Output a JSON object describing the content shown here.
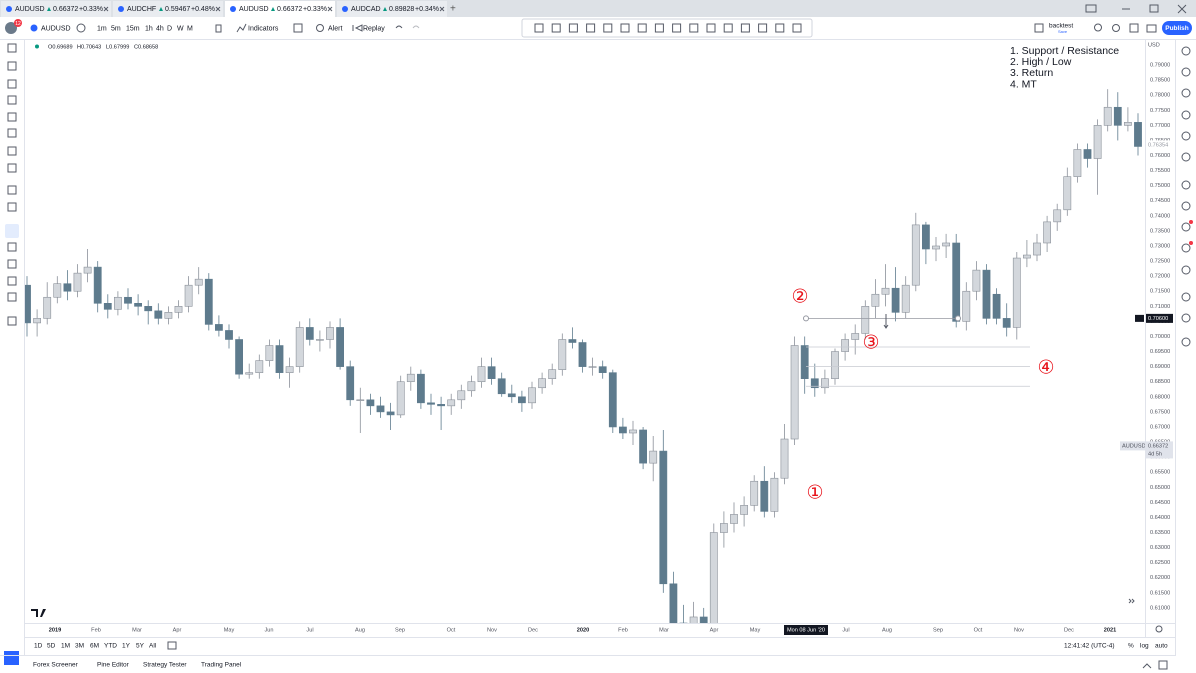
{
  "tabs": [
    {
      "symbol": "AUDUSD",
      "price": "0.66372",
      "change": "+0.33%"
    },
    {
      "symbol": "AUDCHF",
      "price": "0.59467",
      "change": "+0.48%"
    },
    {
      "symbol": "AUDUSD",
      "price": "0.66372",
      "change": "+0.33%"
    },
    {
      "symbol": "AUDCAD",
      "price": "0.89828",
      "change": "+0.34%"
    }
  ],
  "toolbar": {
    "notifications": "12",
    "symbol": "AUDUSD",
    "intervals": [
      "1m",
      "5m",
      "15m",
      "1h",
      "4h",
      "D",
      "W",
      "M"
    ],
    "indicators": "Indicators",
    "alert": "Alert",
    "replay": "Replay",
    "layout_name": "backtest",
    "save": "Save",
    "publish": "Publish"
  },
  "chart_data": {
    "type": "candlestick",
    "ohlc_legend": [
      "O0.69689",
      "H0.70643",
      "L0.67999",
      "C0.68658"
    ],
    "currency": "USD",
    "up_color": "#d3d7dc",
    "down_color": "#5e7b8d",
    "ylim": [
      0.605,
      0.7983
    ],
    "yticks": [
      {
        "value": 0.61,
        "label": "0.61000"
      },
      {
        "value": 0.615,
        "label": "0.61500"
      },
      {
        "value": 0.62,
        "label": "0.62000"
      },
      {
        "value": 0.625,
        "label": "0.62500"
      },
      {
        "value": 0.63,
        "label": "0.63000"
      },
      {
        "value": 0.635,
        "label": "0.63500"
      },
      {
        "value": 0.64,
        "label": "0.64000"
      },
      {
        "value": 0.645,
        "label": "0.64500"
      },
      {
        "value": 0.65,
        "label": "0.65000"
      },
      {
        "value": 0.655,
        "label": "0.65500"
      },
      {
        "value": 0.66,
        "label": "0.66000"
      },
      {
        "value": 0.665,
        "label": "0.66500"
      },
      {
        "value": 0.67,
        "label": "0.67000"
      },
      {
        "value": 0.675,
        "label": "0.67500"
      },
      {
        "value": 0.68,
        "label": "0.68000"
      },
      {
        "value": 0.685,
        "label": "0.68500"
      },
      {
        "value": 0.69,
        "label": "0.69000"
      },
      {
        "value": 0.695,
        "label": "0.69500"
      },
      {
        "value": 0.7,
        "label": "0.70000"
      },
      {
        "value": 0.705,
        "label": "0.70500"
      },
      {
        "value": 0.71,
        "label": "0.71000"
      },
      {
        "value": 0.715,
        "label": "0.71500"
      },
      {
        "value": 0.72,
        "label": "0.72000"
      },
      {
        "value": 0.725,
        "label": "0.72500"
      },
      {
        "value": 0.73,
        "label": "0.73000"
      },
      {
        "value": 0.735,
        "label": "0.73500"
      },
      {
        "value": 0.74,
        "label": "0.74000"
      },
      {
        "value": 0.745,
        "label": "0.74500"
      },
      {
        "value": 0.75,
        "label": "0.75000"
      },
      {
        "value": 0.755,
        "label": "0.75500"
      },
      {
        "value": 0.76,
        "label": "0.76000"
      },
      {
        "value": 0.765,
        "label": "0.76500"
      },
      {
        "value": 0.77,
        "label": "0.77000"
      },
      {
        "value": 0.775,
        "label": "0.77500"
      },
      {
        "value": 0.78,
        "label": "0.78000"
      },
      {
        "value": 0.785,
        "label": "0.78500"
      },
      {
        "value": 0.79,
        "label": "0.79000"
      }
    ],
    "grid": false,
    "xlabels": [
      "2019",
      "Feb",
      "Mar",
      "Apr",
      "May",
      "Jun",
      "Jul",
      "Aug",
      "Sep",
      "Oct",
      "Nov",
      "Dec",
      "2020",
      "Feb",
      "Mar",
      "Apr",
      "May",
      "Mon 08 Jun '20",
      "Jul",
      "Aug",
      "Sep",
      "Oct",
      "Nov",
      "Dec",
      "2021"
    ],
    "candles": [
      [
        0.717,
        0.72,
        0.7,
        0.7045
      ],
      [
        0.7045,
        0.709,
        0.7,
        0.706
      ],
      [
        0.706,
        0.718,
        0.704,
        0.713
      ],
      [
        0.713,
        0.72,
        0.711,
        0.7175
      ],
      [
        0.7175,
        0.722,
        0.712,
        0.715
      ],
      [
        0.715,
        0.724,
        0.713,
        0.721
      ],
      [
        0.721,
        0.729,
        0.718,
        0.723
      ],
      [
        0.723,
        0.725,
        0.708,
        0.711
      ],
      [
        0.711,
        0.714,
        0.706,
        0.709
      ],
      [
        0.709,
        0.715,
        0.707,
        0.713
      ],
      [
        0.713,
        0.716,
        0.709,
        0.711
      ],
      [
        0.711,
        0.714,
        0.707,
        0.71
      ],
      [
        0.71,
        0.712,
        0.704,
        0.7085
      ],
      [
        0.7085,
        0.711,
        0.704,
        0.706
      ],
      [
        0.706,
        0.71,
        0.704,
        0.708
      ],
      [
        0.708,
        0.712,
        0.706,
        0.71
      ],
      [
        0.71,
        0.72,
        0.708,
        0.717
      ],
      [
        0.717,
        0.723,
        0.714,
        0.719
      ],
      [
        0.719,
        0.721,
        0.702,
        0.704
      ],
      [
        0.704,
        0.707,
        0.7,
        0.702
      ],
      [
        0.702,
        0.704,
        0.696,
        0.699
      ],
      [
        0.699,
        0.7,
        0.686,
        0.6875
      ],
      [
        0.6875,
        0.691,
        0.686,
        0.688
      ],
      [
        0.688,
        0.694,
        0.686,
        0.692
      ],
      [
        0.692,
        0.699,
        0.69,
        0.697
      ],
      [
        0.697,
        0.699,
        0.686,
        0.688
      ],
      [
        0.688,
        0.693,
        0.683,
        0.69
      ],
      [
        0.69,
        0.705,
        0.688,
        0.703
      ],
      [
        0.703,
        0.706,
        0.697,
        0.699
      ],
      [
        0.699,
        0.702,
        0.695,
        0.699
      ],
      [
        0.699,
        0.705,
        0.696,
        0.703
      ],
      [
        0.703,
        0.706,
        0.689,
        0.69
      ],
      [
        0.69,
        0.692,
        0.677,
        0.679
      ],
      [
        0.679,
        0.683,
        0.668,
        0.679
      ],
      [
        0.679,
        0.681,
        0.674,
        0.677
      ],
      [
        0.677,
        0.68,
        0.673,
        0.675
      ],
      [
        0.675,
        0.678,
        0.669,
        0.674
      ],
      [
        0.674,
        0.687,
        0.673,
        0.685
      ],
      [
        0.685,
        0.69,
        0.682,
        0.6875
      ],
      [
        0.6875,
        0.689,
        0.676,
        0.678
      ],
      [
        0.678,
        0.681,
        0.674,
        0.6775
      ],
      [
        0.6775,
        0.68,
        0.669,
        0.677
      ],
      [
        0.677,
        0.681,
        0.674,
        0.679
      ],
      [
        0.679,
        0.684,
        0.676,
        0.682
      ],
      [
        0.682,
        0.687,
        0.68,
        0.685
      ],
      [
        0.685,
        0.693,
        0.683,
        0.69
      ],
      [
        0.69,
        0.693,
        0.684,
        0.686
      ],
      [
        0.686,
        0.688,
        0.68,
        0.681
      ],
      [
        0.681,
        0.684,
        0.678,
        0.68
      ],
      [
        0.68,
        0.682,
        0.675,
        0.678
      ],
      [
        0.678,
        0.685,
        0.676,
        0.683
      ],
      [
        0.683,
        0.688,
        0.681,
        0.686
      ],
      [
        0.686,
        0.691,
        0.684,
        0.689
      ],
      [
        0.689,
        0.701,
        0.687,
        0.699
      ],
      [
        0.699,
        0.703,
        0.696,
        0.698
      ],
      [
        0.698,
        0.699,
        0.688,
        0.69
      ],
      [
        0.69,
        0.693,
        0.687,
        0.69
      ],
      [
        0.69,
        0.692,
        0.686,
        0.688
      ],
      [
        0.688,
        0.689,
        0.668,
        0.67
      ],
      [
        0.67,
        0.673,
        0.666,
        0.668
      ],
      [
        0.668,
        0.672,
        0.664,
        0.669
      ],
      [
        0.669,
        0.67,
        0.656,
        0.658
      ],
      [
        0.658,
        0.667,
        0.652,
        0.662
      ],
      [
        0.662,
        0.669,
        0.615,
        0.618
      ],
      [
        0.618,
        0.622,
        0.581,
        0.605
      ],
      [
        0.605,
        0.611,
        0.59,
        0.595
      ],
      [
        0.595,
        0.612,
        0.59,
        0.607
      ],
      [
        0.607,
        0.61,
        0.592,
        0.598
      ],
      [
        0.598,
        0.638,
        0.596,
        0.635
      ],
      [
        0.635,
        0.642,
        0.63,
        0.638
      ],
      [
        0.638,
        0.645,
        0.635,
        0.641
      ],
      [
        0.641,
        0.647,
        0.637,
        0.644
      ],
      [
        0.644,
        0.654,
        0.642,
        0.652
      ],
      [
        0.652,
        0.657,
        0.64,
        0.642
      ],
      [
        0.642,
        0.655,
        0.64,
        0.653
      ],
      [
        0.653,
        0.671,
        0.651,
        0.666
      ],
      [
        0.666,
        0.7,
        0.664,
        0.697
      ],
      [
        0.697,
        0.7,
        0.681,
        0.686
      ],
      [
        0.686,
        0.691,
        0.68,
        0.683
      ],
      [
        0.683,
        0.689,
        0.681,
        0.686
      ],
      [
        0.686,
        0.696,
        0.684,
        0.695
      ],
      [
        0.695,
        0.701,
        0.692,
        0.699
      ],
      [
        0.699,
        0.704,
        0.694,
        0.701
      ],
      [
        0.701,
        0.712,
        0.699,
        0.71
      ],
      [
        0.71,
        0.719,
        0.706,
        0.714
      ],
      [
        0.714,
        0.724,
        0.71,
        0.716
      ],
      [
        0.716,
        0.723,
        0.705,
        0.708
      ],
      [
        0.708,
        0.72,
        0.706,
        0.717
      ],
      [
        0.717,
        0.741,
        0.715,
        0.737
      ],
      [
        0.737,
        0.738,
        0.724,
        0.729
      ],
      [
        0.729,
        0.733,
        0.725,
        0.73
      ],
      [
        0.73,
        0.734,
        0.726,
        0.731
      ],
      [
        0.731,
        0.734,
        0.703,
        0.705
      ],
      [
        0.705,
        0.718,
        0.702,
        0.715
      ],
      [
        0.715,
        0.725,
        0.712,
        0.722
      ],
      [
        0.722,
        0.724,
        0.704,
        0.706
      ],
      [
        0.714,
        0.716,
        0.704,
        0.706
      ],
      [
        0.706,
        0.711,
        0.7,
        0.703
      ],
      [
        0.703,
        0.728,
        0.699,
        0.726
      ],
      [
        0.726,
        0.732,
        0.723,
        0.727
      ],
      [
        0.727,
        0.734,
        0.725,
        0.731
      ],
      [
        0.731,
        0.74,
        0.728,
        0.738
      ],
      [
        0.738,
        0.744,
        0.735,
        0.742
      ],
      [
        0.742,
        0.756,
        0.74,
        0.753
      ],
      [
        0.753,
        0.764,
        0.751,
        0.762
      ],
      [
        0.762,
        0.764,
        0.756,
        0.759
      ],
      [
        0.759,
        0.772,
        0.747,
        0.77
      ],
      [
        0.77,
        0.782,
        0.768,
        0.776
      ],
      [
        0.776,
        0.781,
        0.765,
        0.77
      ],
      [
        0.77,
        0.776,
        0.768,
        0.771
      ],
      [
        0.771,
        0.774,
        0.76,
        0.763
      ]
    ],
    "levels": [
      0.706,
      0.6965,
      0.69,
      0.6835
    ],
    "current_price": {
      "value": 0.66372,
      "label": "0.66372",
      "symbol": "AUDUSD",
      "countdown": "4d 5h"
    },
    "marker_price": {
      "value": 0.706,
      "label": "0.70600"
    },
    "reference_price": {
      "value": 0.76354,
      "label": "0.76354"
    },
    "annotations": [
      "②",
      "③",
      "①",
      "④"
    ],
    "notes": [
      "1. Support / Resistance",
      "2. High / Low",
      "3. Return",
      "4. MT"
    ]
  },
  "bottom_bar": {
    "ranges": [
      "1D",
      "5D",
      "1M",
      "3M",
      "6M",
      "YTD",
      "1Y",
      "5Y",
      "All"
    ],
    "clock": "12:41:42 (UTC-4)",
    "percent": "%",
    "log": "log",
    "auto": "auto"
  },
  "footer": {
    "tabs": [
      "Forex Screener",
      "Pine Editor",
      "Strategy Tester",
      "Trading Panel"
    ]
  }
}
